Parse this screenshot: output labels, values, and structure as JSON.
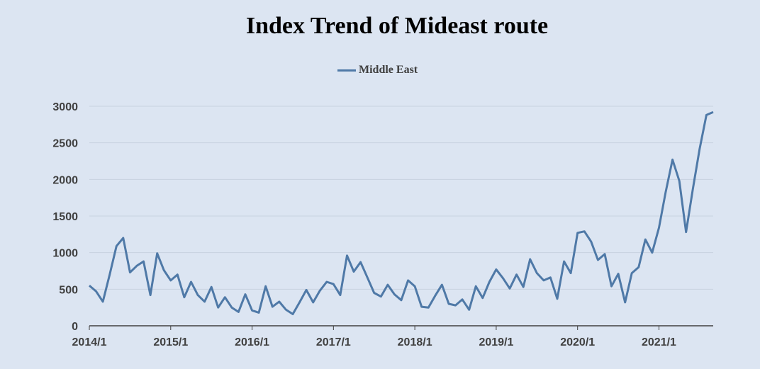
{
  "chart_data": {
    "type": "line",
    "title": "Index Trend of Mideast route",
    "xlabel": "",
    "ylabel": "",
    "legend_position": "top",
    "grid": true,
    "ylim": [
      0,
      3000
    ],
    "y_ticks": [
      "0",
      "500",
      "1000",
      "1500",
      "2000",
      "2500",
      "3000"
    ],
    "x_ticks": [
      "2014/1",
      "2015/1",
      "2016/1",
      "2017/1",
      "2018/1",
      "2019/1",
      "2020/1",
      "2021/1"
    ],
    "x_range": [
      "2014/1",
      "2021/6"
    ],
    "series": [
      {
        "name": "Middle East",
        "color": "#4f79a7",
        "points": [
          [
            "2014/1",
            550
          ],
          [
            "2014/2",
            470
          ],
          [
            "2014/3",
            330
          ],
          [
            "2014/4",
            700
          ],
          [
            "2014/5",
            1090
          ],
          [
            "2014/6",
            1200
          ],
          [
            "2014/7",
            730
          ],
          [
            "2014/8",
            820
          ],
          [
            "2014/9",
            880
          ],
          [
            "2014/10",
            420
          ],
          [
            "2014/11",
            990
          ],
          [
            "2014/12",
            760
          ],
          [
            "2015/1",
            620
          ],
          [
            "2015/2",
            700
          ],
          [
            "2015/3",
            390
          ],
          [
            "2015/4",
            600
          ],
          [
            "2015/5",
            420
          ],
          [
            "2015/6",
            330
          ],
          [
            "2015/7",
            530
          ],
          [
            "2015/8",
            250
          ],
          [
            "2015/9",
            390
          ],
          [
            "2015/10",
            250
          ],
          [
            "2015/11",
            190
          ],
          [
            "2015/12",
            430
          ],
          [
            "2016/1",
            210
          ],
          [
            "2016/2",
            180
          ],
          [
            "2016/3",
            540
          ],
          [
            "2016/4",
            260
          ],
          [
            "2016/5",
            330
          ],
          [
            "2016/6",
            220
          ],
          [
            "2016/7",
            160
          ],
          [
            "2016/8",
            320
          ],
          [
            "2016/9",
            490
          ],
          [
            "2016/10",
            320
          ],
          [
            "2016/11",
            480
          ],
          [
            "2016/12",
            600
          ],
          [
            "2017/1",
            570
          ],
          [
            "2017/2",
            420
          ],
          [
            "2017/3",
            960
          ],
          [
            "2017/4",
            740
          ],
          [
            "2017/5",
            870
          ],
          [
            "2017/6",
            660
          ],
          [
            "2017/7",
            450
          ],
          [
            "2017/8",
            400
          ],
          [
            "2017/9",
            560
          ],
          [
            "2017/10",
            430
          ],
          [
            "2017/11",
            350
          ],
          [
            "2017/12",
            620
          ],
          [
            "2018/1",
            540
          ],
          [
            "2018/2",
            260
          ],
          [
            "2018/3",
            250
          ],
          [
            "2018/4",
            410
          ],
          [
            "2018/5",
            560
          ],
          [
            "2018/6",
            300
          ],
          [
            "2018/7",
            280
          ],
          [
            "2018/8",
            360
          ],
          [
            "2018/9",
            220
          ],
          [
            "2018/10",
            540
          ],
          [
            "2018/11",
            380
          ],
          [
            "2018/12",
            600
          ],
          [
            "2019/1",
            770
          ],
          [
            "2019/2",
            650
          ],
          [
            "2019/3",
            510
          ],
          [
            "2019/4",
            700
          ],
          [
            "2019/5",
            530
          ],
          [
            "2019/6",
            910
          ],
          [
            "2019/7",
            720
          ],
          [
            "2019/8",
            620
          ],
          [
            "2019/9",
            660
          ],
          [
            "2019/10",
            370
          ],
          [
            "2019/11",
            880
          ],
          [
            "2019/12",
            720
          ],
          [
            "2020/1",
            1270
          ],
          [
            "2020/2",
            1290
          ],
          [
            "2020/3",
            1150
          ],
          [
            "2020/4",
            900
          ],
          [
            "2020/5",
            980
          ],
          [
            "2020/6",
            540
          ],
          [
            "2020/7",
            710
          ],
          [
            "2020/8",
            320
          ],
          [
            "2020/9",
            720
          ],
          [
            "2020/10",
            800
          ],
          [
            "2020/11",
            1180
          ],
          [
            "2020/12",
            1000
          ],
          [
            "2021/1",
            1340
          ],
          [
            "2021/2",
            1830
          ],
          [
            "2021/3",
            2270
          ],
          [
            "2021/4",
            1980
          ],
          [
            "2021/5",
            1280
          ],
          [
            "2021/6",
            1870
          ],
          [
            "2021/7",
            2420
          ],
          [
            "2021/8",
            2880
          ],
          [
            "2021/9",
            2920
          ]
        ]
      }
    ]
  }
}
